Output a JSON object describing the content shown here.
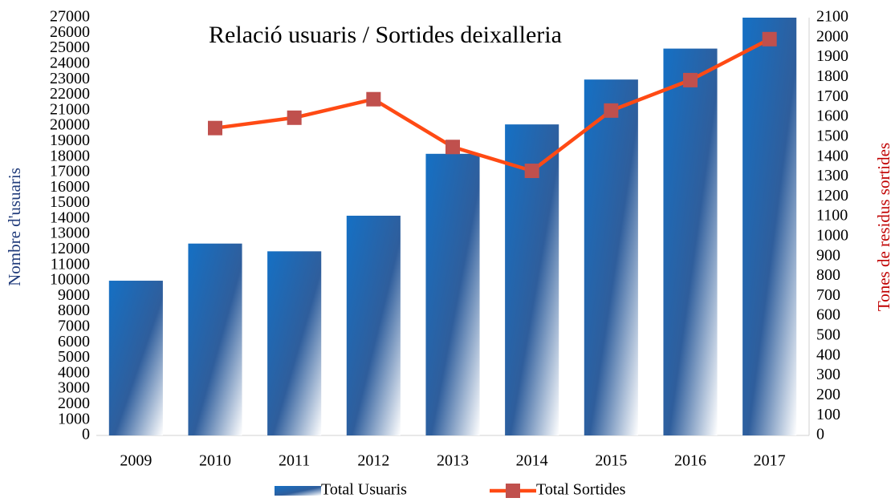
{
  "chart_data": {
    "type": "bar",
    "title": "Relació usuaris / Sortides deixalleria",
    "ylabel": "Nombre d'usuaris",
    "y2label": "Tones de residus sortides",
    "categories": [
      "2009",
      "2010",
      "2011",
      "2012",
      "2013",
      "2014",
      "2015",
      "2016",
      "2017"
    ],
    "series": [
      {
        "name": "Total Usuaris",
        "type": "bar",
        "color": "#1f6fbf",
        "values": [
          10000,
          12400,
          11900,
          14200,
          18200,
          20100,
          23000,
          25000,
          27000
        ]
      },
      {
        "name": "Total Sortides",
        "type": "line",
        "axis": "y2",
        "color": "#ff4a14",
        "marker_color": "#c0504d",
        "values": [
          null,
          1545,
          1597,
          1690,
          1450,
          1330,
          1633,
          1786,
          1992
        ]
      }
    ],
    "ylim": [
      0,
      27000
    ],
    "yticks": [
      0,
      1000,
      2000,
      3000,
      4000,
      5000,
      6000,
      7000,
      8000,
      9000,
      10000,
      11000,
      12000,
      13000,
      14000,
      15000,
      16000,
      17000,
      18000,
      19000,
      20000,
      21000,
      22000,
      23000,
      24000,
      25000,
      26000,
      27000
    ],
    "y2lim": [
      0,
      2100
    ],
    "y2ticks": [
      0,
      100,
      200,
      300,
      400,
      500,
      600,
      700,
      800,
      900,
      1000,
      1100,
      1200,
      1300,
      1400,
      1500,
      1600,
      1700,
      1800,
      1900,
      2000,
      2100
    ],
    "legend": "bottom"
  }
}
